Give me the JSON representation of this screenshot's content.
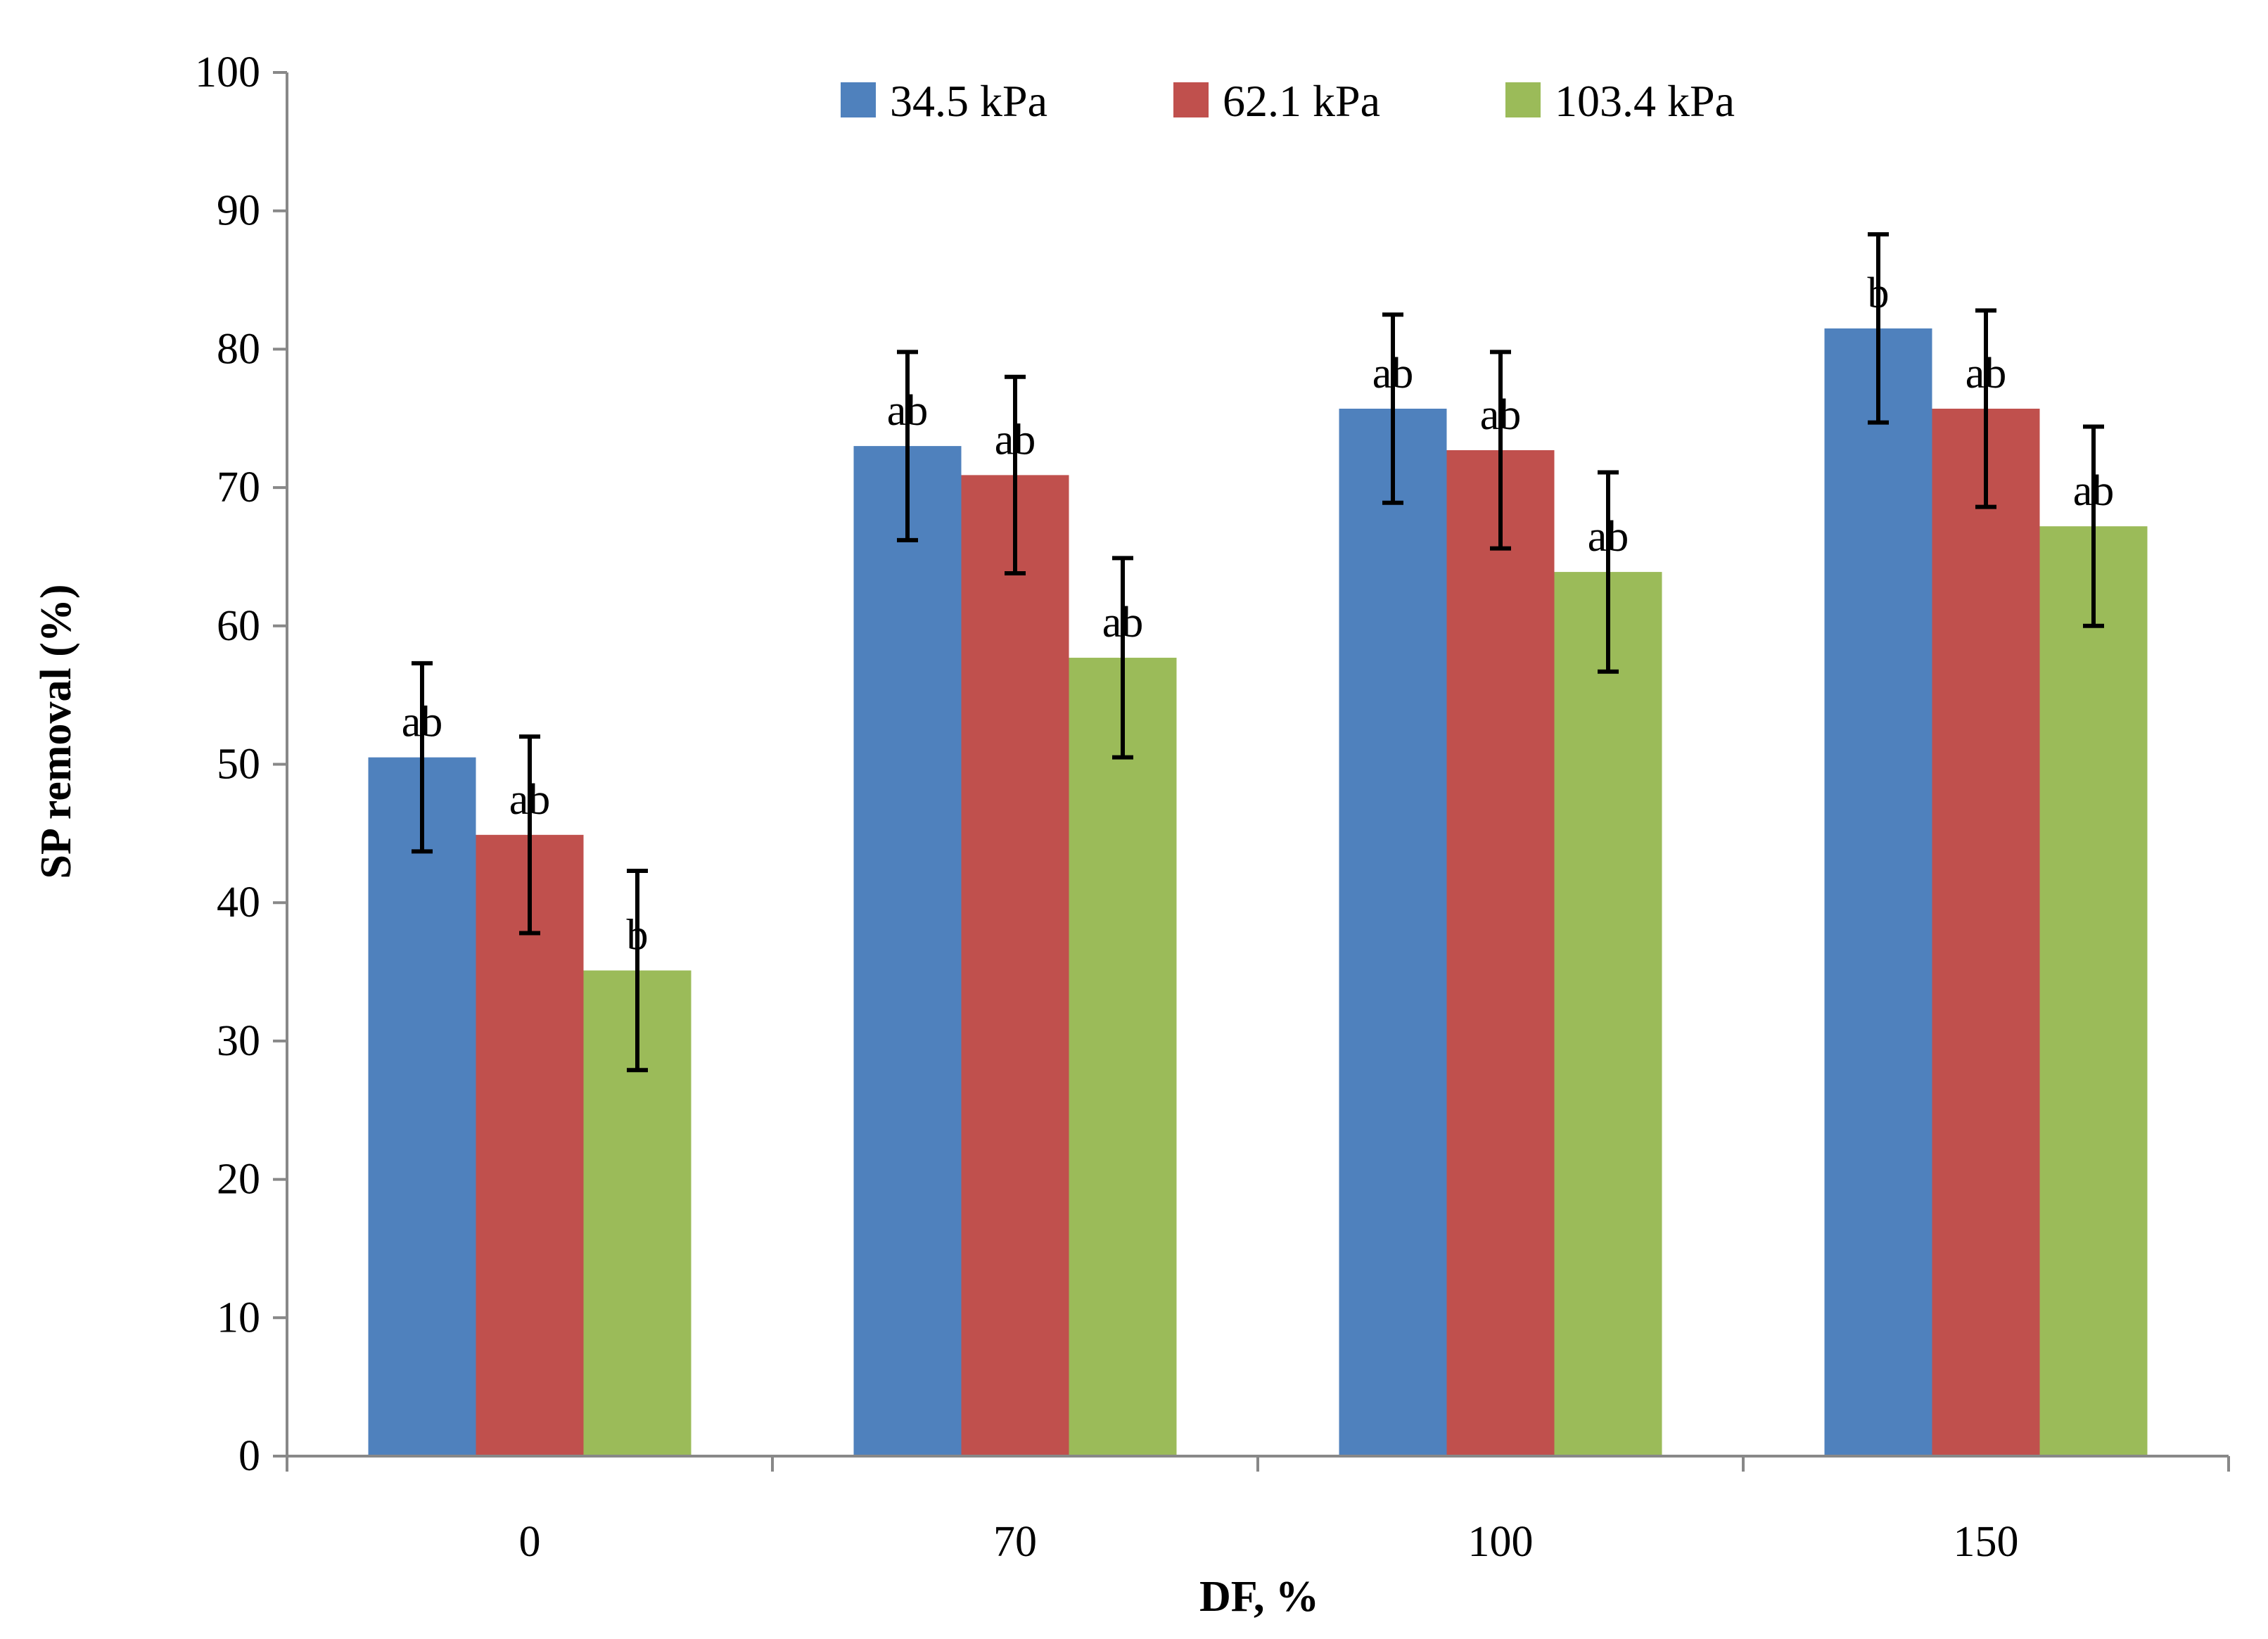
{
  "chart_data": {
    "type": "bar",
    "title": "",
    "xlabel": "DF, %",
    "ylabel": "SP removal (%)",
    "ylim": [
      0,
      100
    ],
    "yticks": [
      0,
      10,
      20,
      30,
      40,
      50,
      60,
      70,
      80,
      90,
      100
    ],
    "categories": [
      "0",
      "70",
      "100",
      "150"
    ],
    "legend_position": "top-center",
    "series": [
      {
        "name": "34.5 kPa",
        "color": "#4F81BD",
        "values": [
          50.5,
          73.0,
          75.7,
          81.5
        ],
        "error": [
          6.8,
          6.8,
          6.8,
          6.8
        ],
        "labels": [
          "ab",
          "ab",
          "ab",
          "b"
        ]
      },
      {
        "name": "62.1 kPa",
        "color": "#C0504D",
        "values": [
          44.9,
          70.9,
          72.7,
          75.7
        ],
        "error": [
          7.1,
          7.1,
          7.1,
          7.1
        ],
        "labels": [
          "ab",
          "ab",
          "ab",
          "ab"
        ]
      },
      {
        "name": "103.4 kPa",
        "color": "#9BBB59",
        "values": [
          35.1,
          57.7,
          63.9,
          67.2
        ],
        "error": [
          7.2,
          7.2,
          7.2,
          7.2
        ],
        "labels": [
          "b",
          "ab",
          "ab",
          "ab"
        ]
      }
    ]
  }
}
